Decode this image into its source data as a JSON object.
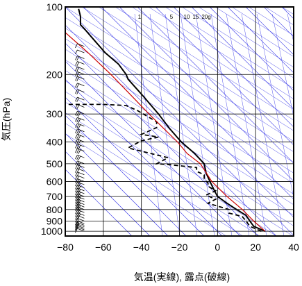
{
  "chart_data": {
    "type": "line",
    "title": "",
    "xlabel": "気温(実線), 露点(破線)",
    "ylabel": "気圧(hPa)",
    "xlim": [
      -80,
      40
    ],
    "ylim": [
      1050,
      100
    ],
    "y_scale": "log",
    "x_ticks": [
      -80,
      -60,
      -40,
      -20,
      0,
      20,
      40
    ],
    "x_tick_labels": [
      "−80",
      "−60",
      "−40",
      "−20",
      "0",
      "20",
      "40"
    ],
    "y_ticks": [
      100,
      200,
      300,
      400,
      500,
      600,
      700,
      800,
      900,
      1000
    ],
    "y_tick_labels": [
      "100",
      "200",
      "300",
      "400",
      "500",
      "600",
      "700",
      "800",
      "900",
      "1000"
    ],
    "grid": true,
    "mixing_ratio_labels": [
      "1",
      "5",
      "10",
      "15",
      "20g"
    ],
    "colors": {
      "temperature": "#000000",
      "dewpoint": "#000000",
      "parcel": "#cc0000",
      "background_lines": "#2a2ae6",
      "grid": "#000000"
    },
    "series": [
      {
        "style": "solid",
        "points": [
          [
            25,
            1000
          ],
          [
            19,
            950
          ],
          [
            17,
            900
          ],
          [
            15,
            850
          ],
          [
            10,
            800
          ],
          [
            5,
            750
          ],
          [
            0,
            700
          ],
          [
            -2,
            650
          ],
          [
            -4,
            600
          ],
          [
            -6,
            550
          ],
          [
            -7,
            500
          ],
          [
            -12,
            450
          ],
          [
            -19,
            400
          ],
          [
            -25,
            350
          ],
          [
            -31,
            300
          ],
          [
            -39,
            250
          ],
          [
            -47,
            210
          ],
          [
            -48,
            200
          ],
          [
            -52,
            180
          ],
          [
            -59,
            160
          ],
          [
            -65,
            140
          ],
          [
            -70,
            125
          ],
          [
            -72,
            120
          ],
          [
            -72,
            110
          ],
          [
            -73,
            102
          ]
        ]
      },
      {
        "style": "dashed",
        "points": [
          [
            23,
            1000
          ],
          [
            17,
            950
          ],
          [
            15,
            900
          ],
          [
            13,
            860
          ],
          [
            6,
            830
          ],
          [
            6,
            800
          ],
          [
            -5,
            750
          ],
          [
            -1,
            720
          ],
          [
            -6,
            690
          ],
          [
            -1,
            660
          ],
          [
            -5,
            630
          ],
          [
            -5,
            610
          ],
          [
            -7,
            580
          ],
          [
            -7,
            560
          ],
          [
            -11,
            540
          ],
          [
            -11,
            520
          ],
          [
            -25,
            505
          ],
          [
            -32,
            500
          ],
          [
            -26,
            470
          ],
          [
            -47,
            425
          ],
          [
            -40,
            395
          ],
          [
            -31,
            380
          ],
          [
            -40,
            370
          ],
          [
            -32,
            345
          ],
          [
            -32,
            325
          ],
          [
            -42,
            290
          ],
          [
            -48,
            275
          ],
          [
            -60,
            272
          ],
          [
            -80,
            272
          ]
        ]
      },
      {
        "style": "parcel",
        "points": [
          [
            25,
            1000
          ],
          [
            19,
            900
          ],
          [
            13,
            800
          ],
          [
            5,
            700
          ],
          [
            -3,
            600
          ],
          [
            -9,
            500
          ],
          [
            -16,
            450
          ],
          [
            -21,
            400
          ],
          [
            -28,
            350
          ],
          [
            -36,
            300
          ],
          [
            -45,
            250
          ],
          [
            -56,
            200
          ],
          [
            -68,
            160
          ],
          [
            -80,
            130
          ]
        ]
      }
    ],
    "wind_barbs": {
      "x_position": -70,
      "levels_hPa": [
        1000,
        985,
        970,
        955,
        940,
        925,
        900,
        875,
        850,
        825,
        800,
        780,
        760,
        740,
        720,
        700,
        680,
        660,
        640,
        620,
        600,
        580,
        560,
        540,
        520,
        500,
        470,
        440,
        420,
        400,
        380,
        360,
        340,
        320,
        300,
        280,
        260,
        240,
        225,
        210,
        200,
        190,
        180,
        170,
        160,
        150
      ],
      "speeds_kt": [
        10,
        10,
        10,
        15,
        15,
        20,
        20,
        20,
        25,
        25,
        25,
        25,
        25,
        30,
        30,
        30,
        30,
        30,
        25,
        25,
        25,
        20,
        20,
        20,
        25,
        25,
        25,
        30,
        30,
        30,
        25,
        25,
        25,
        25,
        25,
        20,
        20,
        20,
        20,
        15,
        15,
        15,
        15,
        15,
        10,
        10
      ]
    }
  }
}
